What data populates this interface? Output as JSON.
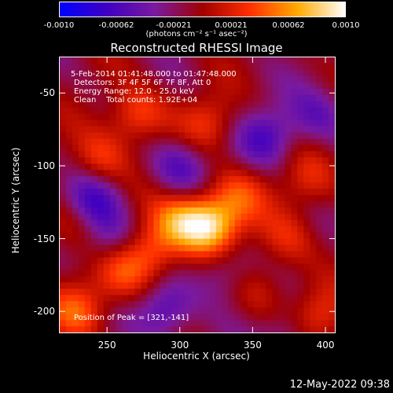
{
  "colorbar": {
    "ticks": [
      "-0.0010",
      "-0.00062",
      "-0.00021",
      "0.00021",
      "0.00062",
      "0.0010"
    ],
    "unit": "(photons cm⁻² s⁻¹ asec⁻²)",
    "colors": [
      "#0000ff",
      "#4000c0",
      "#7a1aa0",
      "#a00000",
      "#ff3000",
      "#ffaa00",
      "#ffffff"
    ]
  },
  "title": "Reconstructed RHESSI Image",
  "info": {
    "line1": "5-Feb-2014 01:41:48.000 to 01:47:48.000",
    "line2": "Detectors: 3F 4F 5F 6F 7F 8F, Att 0",
    "line3": "Energy Range: 12.0 - 25.0 keV",
    "line4": "Clean    Total counts: 1.92E+04",
    "peak": "Position of Peak = [321,-141]"
  },
  "xlabel": "Heliocentric X (arcsec)",
  "ylabel": "Heliocentric Y (arcsec)",
  "timestamp": "12-May-2022 09:38",
  "chart_data": {
    "type": "heatmap",
    "title": "Reconstructed RHESSI Image",
    "xlabel": "Heliocentric X (arcsec)",
    "ylabel": "Heliocentric Y (arcsec)",
    "xlim": [
      217,
      407
    ],
    "ylim": [
      -215,
      -25
    ],
    "x_ticks": [
      "250",
      "300",
      "350",
      "400"
    ],
    "y_ticks": [
      "-50",
      "-100",
      "-150",
      "-200"
    ],
    "color_range": [
      -0.001,
      0.001
    ],
    "peak": [
      321,
      -141
    ],
    "blobs": [
      {
        "x": 321,
        "y": -141,
        "v": 1.0
      },
      {
        "x": 300,
        "y": -138,
        "v": 0.7
      },
      {
        "x": 280,
        "y": -160,
        "v": 0.55
      },
      {
        "x": 260,
        "y": -175,
        "v": 0.45
      },
      {
        "x": 340,
        "y": -120,
        "v": 0.45
      },
      {
        "x": 270,
        "y": -65,
        "v": 0.55
      },
      {
        "x": 245,
        "y": -95,
        "v": 0.45
      },
      {
        "x": 320,
        "y": -70,
        "v": 0.4
      },
      {
        "x": 230,
        "y": -200,
        "v": 0.55
      },
      {
        "x": 375,
        "y": -150,
        "v": 0.35
      },
      {
        "x": 395,
        "y": -205,
        "v": 0.45
      },
      {
        "x": 390,
        "y": -110,
        "v": 0.35
      },
      {
        "x": 355,
        "y": -185,
        "v": 0.3
      },
      {
        "x": 225,
        "y": -140,
        "v": 0.3
      },
      {
        "x": 300,
        "y": -100,
        "v": -0.5
      },
      {
        "x": 360,
        "y": -80,
        "v": -0.5
      },
      {
        "x": 240,
        "y": -125,
        "v": -0.55
      },
      {
        "x": 290,
        "y": -200,
        "v": -0.55
      },
      {
        "x": 375,
        "y": -220,
        "v": -0.4
      },
      {
        "x": 395,
        "y": -65,
        "v": -0.4
      },
      {
        "x": 330,
        "y": -175,
        "v": -0.35
      },
      {
        "x": 250,
        "y": -150,
        "v": -0.4
      }
    ]
  }
}
